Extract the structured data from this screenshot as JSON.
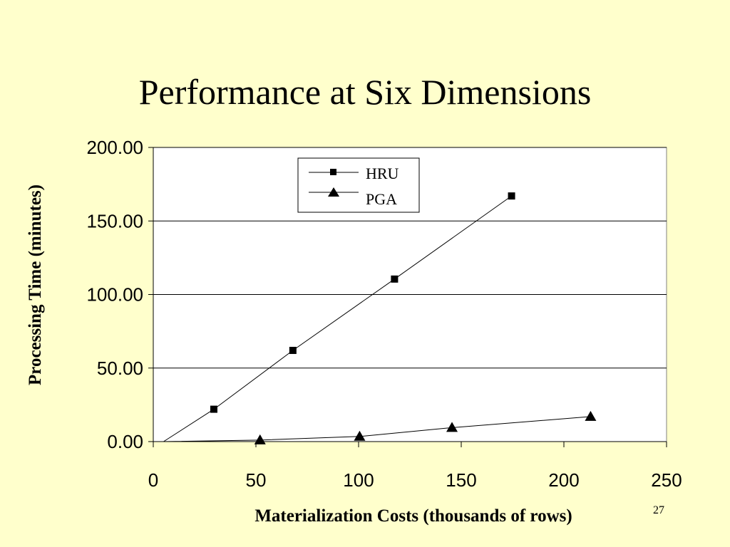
{
  "slide": {
    "title": "Performance at Six Dimensions",
    "page_number": "27"
  },
  "chart_data": {
    "type": "line",
    "xlabel": "Materialization Costs (thousands of rows)",
    "ylabel": "Processing Time (minutes)",
    "xlim": [
      0,
      250
    ],
    "ylim": [
      0,
      200
    ],
    "x_ticks": [
      "0",
      "50",
      "100",
      "150",
      "200",
      "250"
    ],
    "x_tick_values": [
      0,
      50,
      100,
      150,
      200,
      250
    ],
    "y_ticks": [
      "0.00",
      "50.00",
      "100.00",
      "150.00",
      "200.00"
    ],
    "y_tick_values": [
      0,
      50,
      100,
      150,
      200
    ],
    "grid": "horizontal",
    "legend_position": "top-center",
    "series": [
      {
        "name": "HRU",
        "marker": "square",
        "color": "#000000",
        "x": [
          5,
          29.5,
          68,
          117.5,
          174.5
        ],
        "y": [
          0,
          22,
          62,
          110.5,
          167
        ],
        "marker_x": [
          29.5,
          68,
          117.5,
          174.5
        ],
        "marker_y": [
          22,
          62,
          110.5,
          167
        ]
      },
      {
        "name": "PGA",
        "marker": "triangle",
        "color": "#000000",
        "x": [
          5,
          52,
          100.5,
          145.5,
          213
        ],
        "y": [
          0,
          1,
          3.5,
          9.5,
          17
        ],
        "marker_x": [
          52,
          100.5,
          145.5,
          213
        ],
        "marker_y": [
          1,
          3.5,
          9.5,
          17
        ]
      }
    ]
  }
}
